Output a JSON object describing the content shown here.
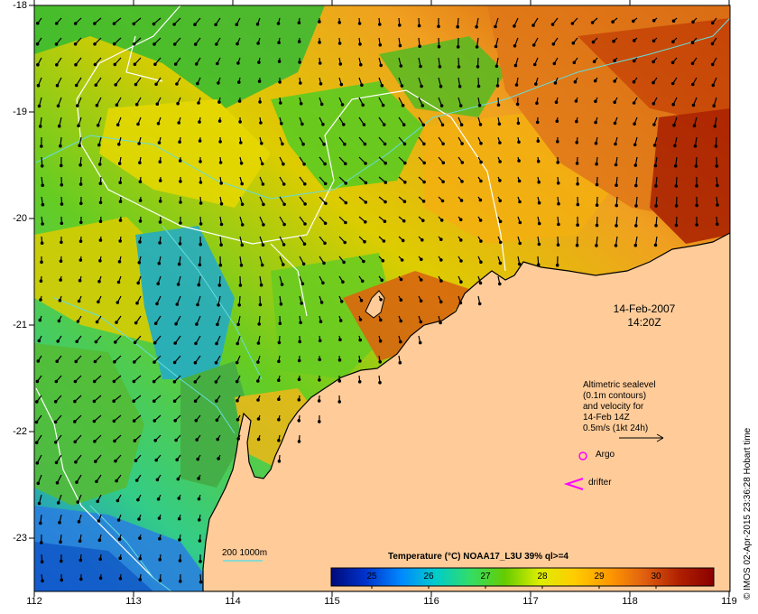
{
  "map": {
    "lon_ticks": [
      "112",
      "113",
      "114",
      "115",
      "116",
      "117",
      "118",
      "119"
    ],
    "lat_ticks": [
      "-18",
      "-19",
      "-20",
      "-21",
      "-22",
      "-23"
    ],
    "land_color": "#ffcc99",
    "ocean_colorscale": "temperature (blue→green→yellow→orange→dark red)"
  },
  "annotations": {
    "date": "14-Feb-2007",
    "time": "14:20Z",
    "altimetry_lines": [
      "Altimetric sealevel",
      "(0.1m contours)",
      "and velocity for",
      "14-Feb 14Z",
      "0.5m/s (1kt 24h)"
    ],
    "argo_label": "Argo",
    "drifter_label": "drifter",
    "contour_legend": "200  1000m",
    "credit": "© IMOS 02-Apr-2015 23:36:28 Hobart time"
  },
  "colorbar": {
    "title": "Temperature (°C) NOAA17_L3U 39% ql>=4",
    "labels": [
      "25",
      "26",
      "27",
      "28",
      "29",
      "30"
    ],
    "colors": [
      "#000a7a",
      "#0033cc",
      "#0088ff",
      "#00cccc",
      "#33dd66",
      "#66cc00",
      "#ddee00",
      "#ffcc00",
      "#ff9900",
      "#e06010",
      "#b02000",
      "#8a0000"
    ]
  },
  "colors": {
    "contour_white": "#ffffff",
    "isobath_cyan": "#66dddd",
    "argo_magenta": "#ff00ff",
    "arrow_black": "#000000"
  }
}
